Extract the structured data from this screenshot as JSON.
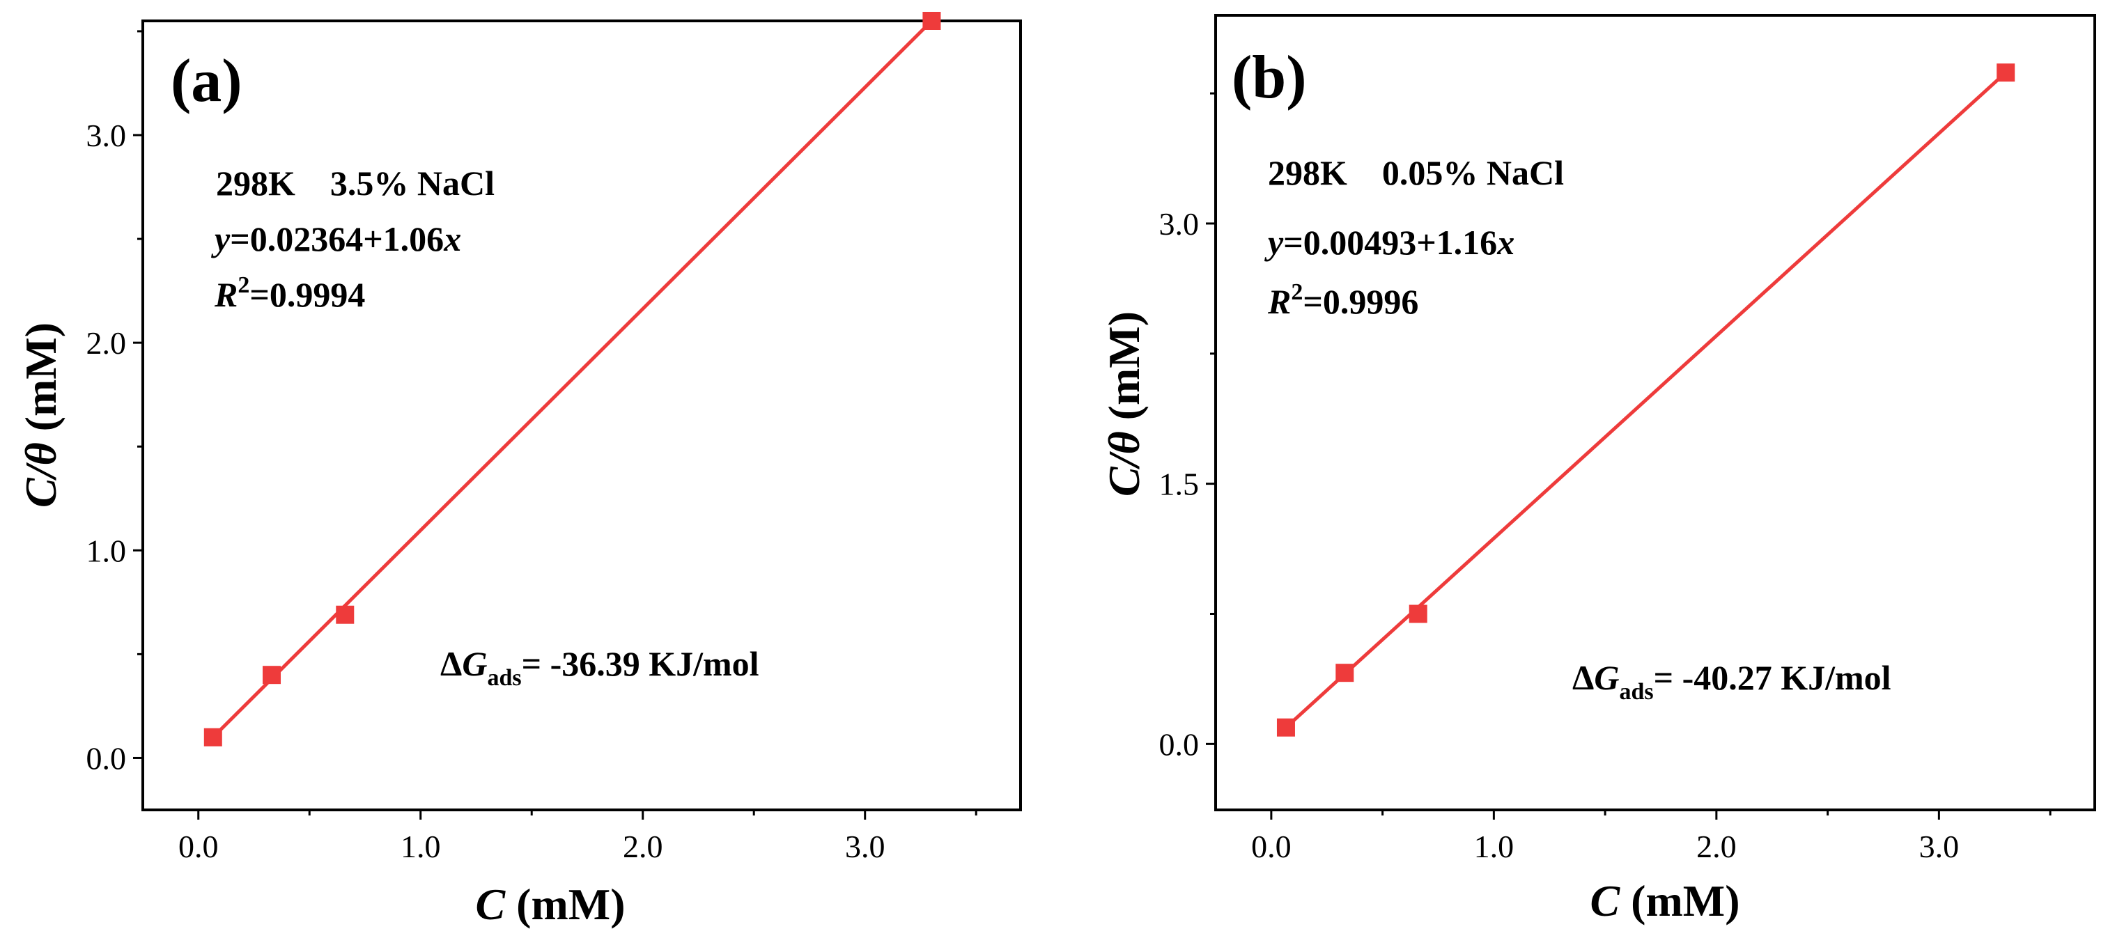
{
  "chart_data": [
    {
      "type": "scatter",
      "panel_label": "(a)",
      "xlabel_var": "C",
      "xlabel_unit": " (mM)",
      "ylabel_var": "C/θ",
      "ylabel_unit": " (mM)",
      "xlim": [
        -0.25,
        3.7
      ],
      "ylim": [
        -0.25,
        3.55
      ],
      "xticks": [
        0.0,
        1.0,
        2.0,
        3.0
      ],
      "xtick_labels": [
        "0.0",
        "1.0",
        "2.0",
        "3.0"
      ],
      "yticks": [
        0.0,
        1.0,
        2.0,
        3.0
      ],
      "ytick_labels": [
        "0.0",
        "1.0",
        "2.0",
        "3.0"
      ],
      "series": [
        {
          "name": "298K 3.5% NaCl",
          "x": [
            0.066,
            0.33,
            0.66,
            3.3
          ],
          "y": [
            0.1,
            0.4,
            0.69,
            3.55
          ]
        }
      ],
      "fit": {
        "intercept": 0.02364,
        "slope": 1.06,
        "x_range": [
          0.066,
          3.3
        ]
      },
      "annotations": {
        "condition": "298K    3.5% NaCl",
        "eq_var": "y",
        "eq_body": "=0.02364+1.06",
        "eq_x": "x",
        "r2_var": "R",
        "r2_sup": "2",
        "r2_value": "=0.9994",
        "dg_prefix": "Δ",
        "dg_var": "G",
        "dg_sub": "ads",
        "dg_value": "= -36.39 KJ/mol"
      }
    },
    {
      "type": "scatter",
      "panel_label": "(b)",
      "xlabel_var": "C",
      "xlabel_unit": " (mM)",
      "ylabel_var": "C/θ",
      "ylabel_unit": " (mM)",
      "xlim": [
        -0.25,
        3.7
      ],
      "ylim": [
        -0.38,
        4.2
      ],
      "xticks": [
        0.0,
        1.0,
        2.0,
        3.0
      ],
      "xtick_labels": [
        "0.0",
        "1.0",
        "2.0",
        "3.0"
      ],
      "yticks": [
        0.0,
        1.5,
        3.0
      ],
      "ytick_labels": [
        "0.0",
        "1.5",
        "3.0"
      ],
      "series": [
        {
          "name": "298K 0.05% NaCl",
          "x": [
            0.066,
            0.33,
            0.66,
            3.3
          ],
          "y": [
            0.095,
            0.41,
            0.75,
            3.87
          ]
        }
      ],
      "fit": {
        "intercept": 0.00493,
        "slope": 1.16,
        "x_range": [
          0.066,
          3.3
        ]
      },
      "annotations": {
        "condition": "298K    0.05% NaCl",
        "eq_var": "y",
        "eq_body": "=0.00493+1.16",
        "eq_x": "x",
        "r2_var": "R",
        "r2_sup": "2",
        "r2_value": "=0.9996",
        "dg_prefix": "Δ",
        "dg_var": "G",
        "dg_sub": "ads",
        "dg_value": "= -40.27 KJ/mol"
      }
    }
  ],
  "colors": {
    "series": "#ee3b3b",
    "axis": "#000000",
    "background": "#ffffff"
  }
}
